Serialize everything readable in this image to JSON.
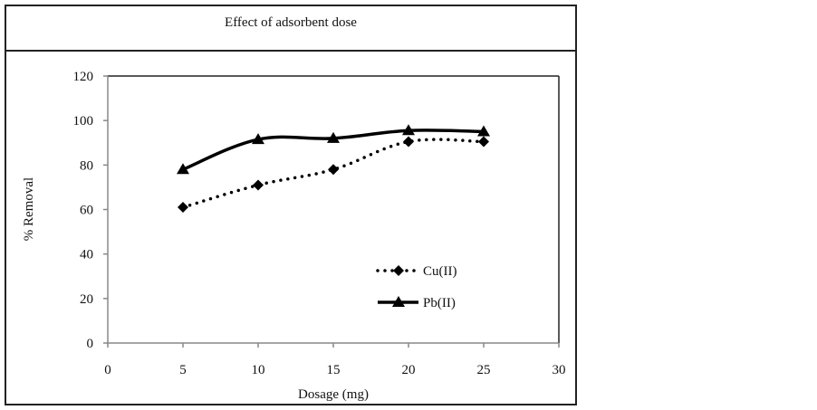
{
  "chart_data": {
    "type": "line",
    "title": "Effect of adsorbent dose",
    "xlabel": "Dosage (mg)",
    "ylabel": "% Removal",
    "xlim": [
      0,
      30
    ],
    "ylim": [
      0,
      120
    ],
    "xticks": [
      0,
      5,
      10,
      15,
      20,
      25,
      30
    ],
    "yticks": [
      0,
      20,
      40,
      60,
      80,
      100,
      120
    ],
    "xtick_labels": [
      "0",
      "5",
      "10",
      "15",
      "20",
      "25",
      "30"
    ],
    "ytick_labels": [
      "0",
      "20",
      "40",
      "60",
      "80",
      "100",
      "120"
    ],
    "grid": false,
    "legend_position": "lower-center-right",
    "x": [
      5,
      10,
      15,
      20,
      25
    ],
    "series": [
      {
        "name": "Cu(II)",
        "marker": "diamond",
        "line": "dotted",
        "smooth": true,
        "values": [
          61,
          71,
          78,
          90.5,
          90.5
        ]
      },
      {
        "name": "Pb(II)",
        "marker": "triangle",
        "line": "solid",
        "smooth": true,
        "values": [
          78,
          91.5,
          92,
          95.5,
          95
        ]
      }
    ]
  },
  "colors": {
    "axis": "#888888",
    "series": "#000000",
    "frame": "#222222"
  }
}
